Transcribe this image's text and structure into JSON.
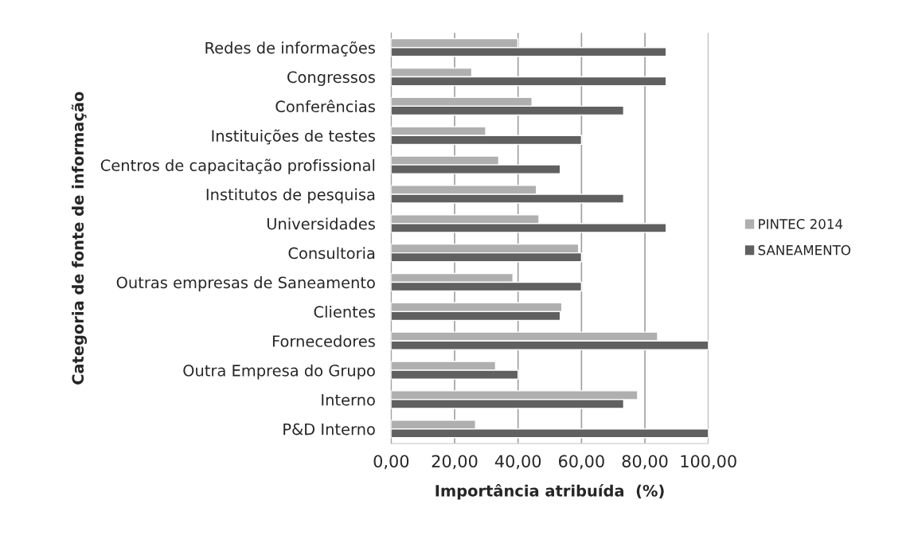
{
  "chart_data": {
    "type": "bar",
    "orientation": "horizontal",
    "xlabel": "Importância atribuída  (%)",
    "ylabel": "Categoria de fonte de informação",
    "categories": [
      "Redes de informações",
      "Congressos",
      "Conferências",
      "Instituições de testes",
      "Centros de capacitação profissional",
      "Institutos de pesquisa",
      "Universidades",
      "Consultoria",
      "Outras empresas de Saneamento",
      "Clientes",
      "Fornecedores",
      "Outra Empresa do Grupo",
      "Interno",
      "P&D Interno"
    ],
    "series": [
      {
        "name": "PINTEC 2014",
        "color": "#afafaf",
        "values": [
          39.9,
          25.4,
          44.4,
          29.8,
          33.9,
          45.8,
          46.6,
          59.1,
          38.4,
          53.8,
          84.0,
          32.9,
          77.7,
          26.6
        ]
      },
      {
        "name": "SANEAMENTO",
        "color": "#606060",
        "values": [
          86.7,
          86.7,
          73.3,
          60.0,
          53.3,
          73.3,
          86.7,
          60.0,
          60.0,
          53.3,
          100.0,
          40.0,
          73.3,
          100.0
        ]
      }
    ],
    "xlim": [
      0,
      100
    ],
    "xticks": [
      {
        "value": 0,
        "label": "0,00"
      },
      {
        "value": 20,
        "label": "20,00"
      },
      {
        "value": 40,
        "label": "40,00"
      },
      {
        "value": 60,
        "label": "60,00"
      },
      {
        "value": 80,
        "label": "80,00"
      },
      {
        "value": 100,
        "label": "100,00"
      }
    ],
    "grid": "x",
    "legend": "right"
  }
}
